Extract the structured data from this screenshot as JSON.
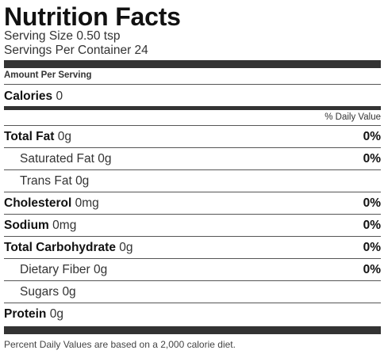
{
  "label": {
    "title": "Nutrition Facts",
    "serving_size": "Serving Size 0.50 tsp",
    "servings_per_container": "Servings Per Container 24",
    "amount_per_serving": "Amount Per Serving",
    "calories_label": "Calories",
    "calories_value": "0",
    "daily_value_header": "% Daily Value",
    "footnote": "Percent Daily Values are based on a 2,000 calorie diet."
  },
  "nutrients": [
    {
      "name": "Total Fat",
      "amount": "0g",
      "dv": "0%"
    },
    {
      "name": "Saturated Fat",
      "amount": "0g",
      "dv": "0%"
    },
    {
      "name": "Trans Fat",
      "amount": "0g",
      "dv": ""
    },
    {
      "name": "Cholesterol",
      "amount": "0mg",
      "dv": "0%"
    },
    {
      "name": "Sodium",
      "amount": "0mg",
      "dv": "0%"
    },
    {
      "name": "Total Carbohydrate",
      "amount": "0g",
      "dv": "0%"
    },
    {
      "name": "Dietary Fiber",
      "amount": "0g",
      "dv": "0%"
    },
    {
      "name": "Sugars",
      "amount": "0g",
      "dv": ""
    },
    {
      "name": "Protein",
      "amount": "0g",
      "dv": ""
    }
  ]
}
